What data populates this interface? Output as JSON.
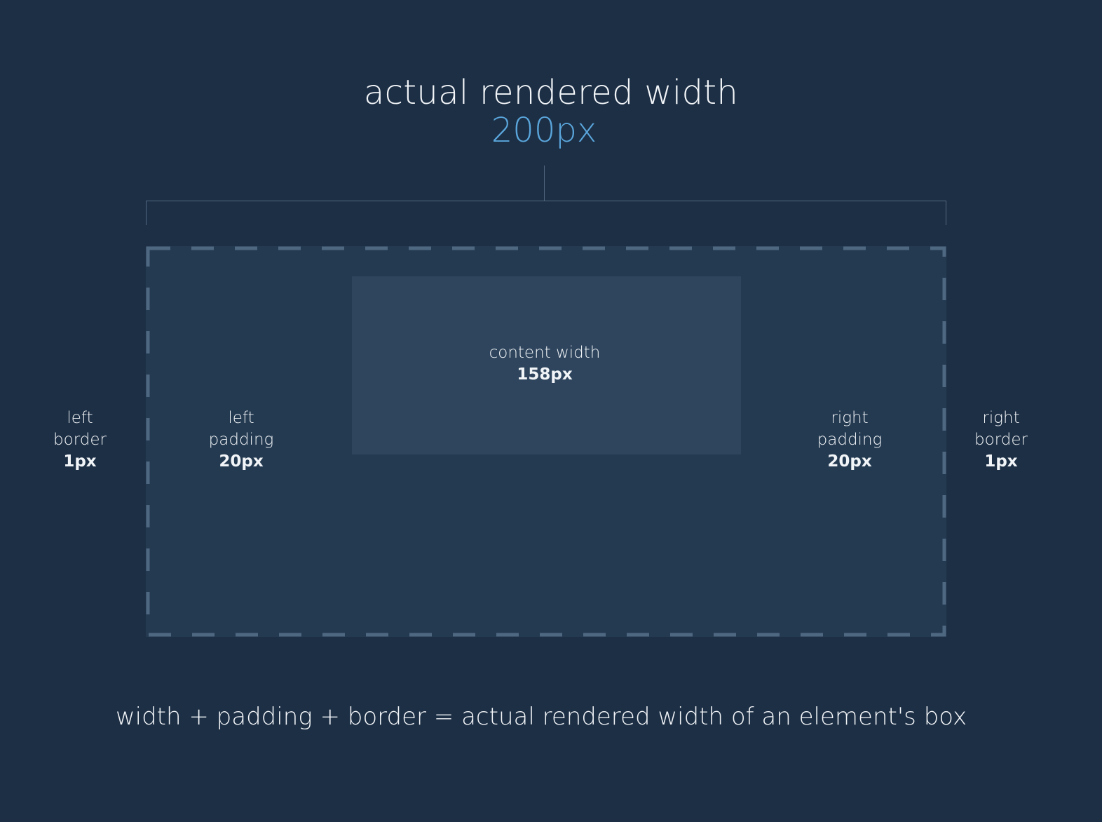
{
  "header": {
    "title": "actual rendered width",
    "value": "200px",
    "value_color": "#5aa6dc"
  },
  "content": {
    "label": "content width",
    "value": "158px"
  },
  "left_border": {
    "line1": "left",
    "line2": "border",
    "value": "1px"
  },
  "left_padding": {
    "line1": "left",
    "line2": "padding",
    "value": "20px"
  },
  "right_padding": {
    "line1": "right",
    "line2": "padding",
    "value": "20px"
  },
  "right_border": {
    "line1": "right",
    "line2": "border",
    "value": "1px"
  },
  "footer": {
    "formula": "width + padding + border = actual rendered width of an element's box"
  },
  "colors": {
    "background": "#1d2f45",
    "outer_box": "#243a51",
    "content_box": "#2e455d",
    "dashed_border": "#4f6882",
    "bracket": "#51677e"
  }
}
